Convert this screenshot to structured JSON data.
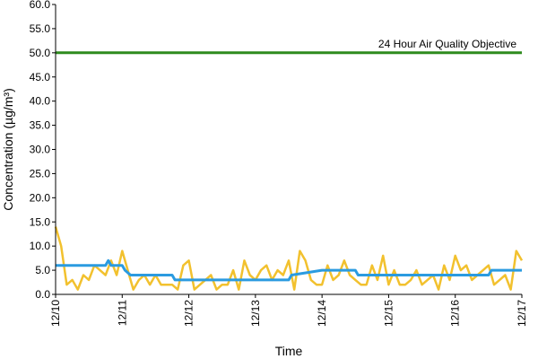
{
  "chart_data": {
    "type": "line",
    "title": "",
    "xlabel": "Time",
    "ylabel": "Concentration (µg/m³)",
    "ylim": [
      0,
      60
    ],
    "yticks": [
      "0.0",
      "5.0",
      "10.0",
      "15.0",
      "20.0",
      "25.0",
      "30.0",
      "35.0",
      "40.0",
      "45.0",
      "50.0",
      "55.0",
      "60.0"
    ],
    "xlim": [
      "12/10",
      "12/17"
    ],
    "xticks": [
      "12/10",
      "12/11",
      "12/12",
      "12/13",
      "12/14",
      "12/15",
      "12/16",
      "12/17"
    ],
    "grid": false,
    "legend": "none",
    "annotations": [
      {
        "text": "24 Hour Air Quality Objective",
        "y": 50
      }
    ],
    "series": [
      {
        "color": "#2e8b1e",
        "role": "objective",
        "x": [
          "12/10 00:00",
          "12/17 00:00"
        ],
        "y": [
          50,
          50
        ]
      },
      {
        "color": "#2b9be0",
        "role": "24-hour average",
        "x": [
          "12/10 00:00",
          "12/10 18:00",
          "12/10 19:00",
          "12/10 20:00",
          "12/10 21:00",
          "12/11 00:00",
          "12/11 01:00",
          "12/11 03:00",
          "12/11 18:00",
          "12/11 19:00",
          "12/12 00:00",
          "12/13 00:00",
          "12/13 12:00",
          "12/13 13:00",
          "12/14 00:00",
          "12/14 12:00",
          "12/14 13:00",
          "12/15 00:00",
          "12/16 00:00",
          "12/16 12:00",
          "12/16 13:00",
          "12/17 00:00"
        ],
        "y": [
          6,
          6,
          7,
          6,
          6,
          6,
          5,
          4,
          4,
          3,
          3,
          3,
          3,
          4,
          5,
          5,
          4,
          4,
          4,
          4,
          5,
          5
        ]
      },
      {
        "color": "#f2c12e",
        "role": "hourly",
        "x": [
          "12/10 00:00",
          "12/10 02:00",
          "12/10 04:00",
          "12/10 06:00",
          "12/10 08:00",
          "12/10 10:00",
          "12/10 12:00",
          "12/10 14:00",
          "12/10 16:00",
          "12/10 18:00",
          "12/10 20:00",
          "12/10 22:00",
          "12/11 00:00",
          "12/11 02:00",
          "12/11 04:00",
          "12/11 06:00",
          "12/11 08:00",
          "12/11 10:00",
          "12/11 12:00",
          "12/11 14:00",
          "12/11 16:00",
          "12/11 18:00",
          "12/11 20:00",
          "12/11 22:00",
          "12/12 00:00",
          "12/12 02:00",
          "12/12 04:00",
          "12/12 06:00",
          "12/12 08:00",
          "12/12 10:00",
          "12/12 12:00",
          "12/12 14:00",
          "12/12 16:00",
          "12/12 18:00",
          "12/12 20:00",
          "12/12 22:00",
          "12/13 00:00",
          "12/13 02:00",
          "12/13 04:00",
          "12/13 06:00",
          "12/13 08:00",
          "12/13 10:00",
          "12/13 12:00",
          "12/13 14:00",
          "12/13 16:00",
          "12/13 18:00",
          "12/13 20:00",
          "12/13 22:00",
          "12/14 00:00",
          "12/14 02:00",
          "12/14 04:00",
          "12/14 06:00",
          "12/14 08:00",
          "12/14 10:00",
          "12/14 12:00",
          "12/14 14:00",
          "12/14 16:00",
          "12/14 18:00",
          "12/14 20:00",
          "12/14 22:00",
          "12/15 00:00",
          "12/15 02:00",
          "12/15 04:00",
          "12/15 06:00",
          "12/15 08:00",
          "12/15 10:00",
          "12/15 12:00",
          "12/15 14:00",
          "12/15 16:00",
          "12/15 18:00",
          "12/15 20:00",
          "12/15 22:00",
          "12/16 00:00",
          "12/16 02:00",
          "12/16 04:00",
          "12/16 06:00",
          "12/16 08:00",
          "12/16 10:00",
          "12/16 12:00",
          "12/16 14:00",
          "12/16 16:00",
          "12/16 18:00",
          "12/16 20:00",
          "12/16 22:00",
          "12/17 00:00"
        ],
        "y": [
          14,
          10,
          2,
          3,
          1,
          4,
          3,
          6,
          5,
          4,
          7,
          4,
          9,
          5,
          1,
          3,
          4,
          2,
          4,
          2,
          2,
          2,
          1,
          6,
          7,
          1,
          2,
          3,
          4,
          1,
          2,
          2,
          5,
          1,
          7,
          4,
          3,
          5,
          6,
          3,
          5,
          4,
          7,
          1,
          9,
          7,
          3,
          2,
          2,
          6,
          3,
          4,
          7,
          4,
          3,
          2,
          2,
          6,
          3,
          8,
          2,
          5,
          2,
          2,
          3,
          5,
          2,
          3,
          4,
          1,
          6,
          3,
          8,
          5,
          6,
          3,
          4,
          5,
          6,
          2,
          3,
          4,
          1,
          9,
          7
        ]
      }
    ]
  }
}
